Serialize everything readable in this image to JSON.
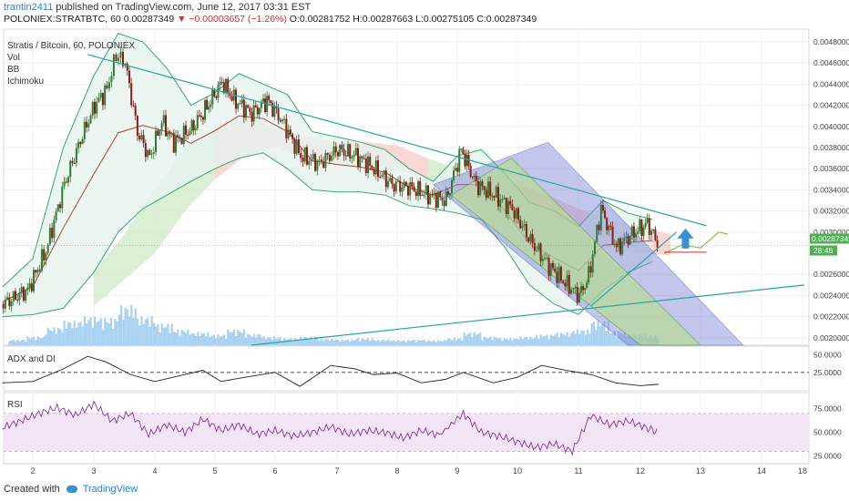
{
  "header": {
    "user": "trantin2411",
    "published": "published on TradingView.com, June 12, 2017 03:31 EST",
    "symbol_line_prefix": "POLONIEX:STRATBTC, 60",
    "last_price": "0.00287349",
    "change": "−0.00003657 (−1.26%)",
    "ohlc": "O:0.00281752 H:0.00287663 L:0.00275105 C:0.00287349"
  },
  "legend": {
    "title": "Stratis / Bitcoin, 60, POLONIEX",
    "items": [
      "Vol",
      "BB",
      "Ichimoku"
    ]
  },
  "adx_label": "ADX and DI",
  "rsi_label": "RSI",
  "footer": {
    "created": "Created with",
    "brand": "TradingView"
  },
  "colors": {
    "up": "#2e7d32",
    "down": "#8b1a1a",
    "volume": "#9ac9ef",
    "bb_fill": "#e6f4ee",
    "bb_line": "#3aa57a",
    "cloud_red": "#f7c9c6",
    "cloud_green": "#cfe9c7",
    "channel_blue": "#7b82d9",
    "channel_green": "#b7df8a",
    "trend": "#26a69a",
    "rsi_line": "#7b1fa2",
    "rsi_band": "#f3e5f5",
    "price_tag": "#4caf50",
    "arrow": "#3b8fd4"
  },
  "chart_data": {
    "type": "candlestick",
    "xlabel": "",
    "ylabel": "",
    "x_ticks": [
      "2",
      "3",
      "4",
      "5",
      "6",
      "7",
      "8",
      "9",
      "10",
      "11",
      "12",
      "13",
      "14",
      "18"
    ],
    "y_ticks": [
      "0.00480000",
      "0.00460000",
      "0.00440000",
      "0.00420000",
      "0.00400000",
      "0.00380000",
      "0.00360000",
      "0.00340000",
      "0.00320000",
      "0.00300000",
      "0.00260000",
      "0.00240000",
      "0.00220000",
      "0.00200000"
    ],
    "ylim": [
      0.00193,
      0.00492
    ],
    "last_price_tag": "0.00287349",
    "countdown_tag": "28:48",
    "price_path": [
      [
        1.5,
        0.00232
      ],
      [
        1.9,
        0.00245
      ],
      [
        2.2,
        0.00282
      ],
      [
        2.5,
        0.00345
      ],
      [
        2.8,
        0.00392
      ],
      [
        3.0,
        0.0042
      ],
      [
        3.2,
        0.00435
      ],
      [
        3.35,
        0.00468
      ],
      [
        3.5,
        0.0046
      ],
      [
        3.7,
        0.00395
      ],
      [
        3.9,
        0.0037
      ],
      [
        4.1,
        0.00405
      ],
      [
        4.3,
        0.00385
      ],
      [
        4.6,
        0.00398
      ],
      [
        4.85,
        0.00418
      ],
      [
        5.1,
        0.00442
      ],
      [
        5.3,
        0.00425
      ],
      [
        5.6,
        0.00412
      ],
      [
        5.85,
        0.00425
      ],
      [
        6.1,
        0.00405
      ],
      [
        6.4,
        0.00372
      ],
      [
        6.7,
        0.00365
      ],
      [
        7.0,
        0.00378
      ],
      [
        7.3,
        0.00372
      ],
      [
        7.6,
        0.0036
      ],
      [
        7.9,
        0.00345
      ],
      [
        8.2,
        0.00342
      ],
      [
        8.5,
        0.00335
      ],
      [
        8.8,
        0.0033
      ],
      [
        9.05,
        0.00378
      ],
      [
        9.3,
        0.00345
      ],
      [
        9.6,
        0.00335
      ],
      [
        9.9,
        0.00322
      ],
      [
        10.2,
        0.00292
      ],
      [
        10.5,
        0.00268
      ],
      [
        10.8,
        0.0025
      ],
      [
        11.0,
        0.0024
      ],
      [
        11.15,
        0.00258
      ],
      [
        11.35,
        0.00322
      ],
      [
        11.6,
        0.00285
      ],
      [
        11.85,
        0.00298
      ],
      [
        12.1,
        0.00308
      ],
      [
        12.3,
        0.00287
      ]
    ],
    "bollinger": {
      "upper": [
        [
          1.5,
          0.00248
        ],
        [
          2.0,
          0.00275
        ],
        [
          2.5,
          0.0038
        ],
        [
          3.0,
          0.00448
        ],
        [
          3.4,
          0.00488
        ],
        [
          3.8,
          0.0048
        ],
        [
          4.2,
          0.00455
        ],
        [
          4.6,
          0.0042
        ],
        [
          5.0,
          0.00432
        ],
        [
          5.4,
          0.0045
        ],
        [
          5.8,
          0.0044
        ],
        [
          6.2,
          0.0043
        ],
        [
          6.6,
          0.00395
        ],
        [
          7.0,
          0.0039
        ],
        [
          7.4,
          0.00385
        ],
        [
          7.8,
          0.00378
        ],
        [
          8.2,
          0.0036
        ],
        [
          8.6,
          0.00348
        ],
        [
          9.0,
          0.00372
        ],
        [
          9.4,
          0.00378
        ],
        [
          9.8,
          0.00355
        ],
        [
          10.2,
          0.00328
        ],
        [
          10.6,
          0.0032
        ],
        [
          11.0,
          0.00305
        ],
        [
          11.4,
          0.0033
        ],
        [
          11.8,
          0.00318
        ],
        [
          12.2,
          0.00312
        ]
      ],
      "lower": [
        [
          1.5,
          0.0022
        ],
        [
          2.0,
          0.00222
        ],
        [
          2.5,
          0.00228
        ],
        [
          3.0,
          0.00262
        ],
        [
          3.4,
          0.003
        ],
        [
          3.8,
          0.00322
        ],
        [
          4.2,
          0.00335
        ],
        [
          4.6,
          0.00348
        ],
        [
          5.0,
          0.0036
        ],
        [
          5.4,
          0.0037
        ],
        [
          5.8,
          0.00375
        ],
        [
          6.2,
          0.0036
        ],
        [
          6.6,
          0.0034
        ],
        [
          7.0,
          0.00338
        ],
        [
          7.4,
          0.00338
        ],
        [
          7.8,
          0.00335
        ],
        [
          8.2,
          0.00325
        ],
        [
          8.6,
          0.00322
        ],
        [
          9.0,
          0.00318
        ],
        [
          9.4,
          0.00312
        ],
        [
          9.8,
          0.00285
        ],
        [
          10.2,
          0.0025
        ],
        [
          10.6,
          0.00232
        ],
        [
          11.0,
          0.00222
        ],
        [
          11.4,
          0.00245
        ],
        [
          11.8,
          0.00262
        ],
        [
          12.2,
          0.00272
        ]
      ]
    },
    "cloud": [
      [
        3.0,
        0.0023,
        0.00262
      ],
      [
        3.5,
        0.00255,
        0.00298
      ],
      [
        4.0,
        0.0028,
        0.0034
      ],
      [
        4.5,
        0.0032,
        0.0038
      ],
      [
        5.0,
        0.0035,
        0.004
      ],
      [
        5.5,
        0.00372,
        0.00412
      ],
      [
        6.0,
        0.0038,
        0.00398
      ],
      [
        6.5,
        0.00368,
        0.0039
      ],
      [
        7.0,
        0.00365,
        0.00385
      ],
      [
        7.5,
        0.00365,
        0.00385
      ],
      [
        8.0,
        0.00358,
        0.00382
      ],
      [
        8.5,
        0.00352,
        0.0037
      ],
      [
        9.0,
        0.00335,
        0.0036
      ],
      [
        9.5,
        0.0033,
        0.00352
      ],
      [
        10.0,
        0.00325,
        0.00345
      ],
      [
        10.5,
        0.003,
        0.00335
      ],
      [
        11.0,
        0.0029,
        0.00322
      ],
      [
        11.5,
        0.00285,
        0.00312
      ],
      [
        12.0,
        0.0028,
        0.00305
      ],
      [
        12.5,
        0.00278,
        0.00298
      ]
    ],
    "volume": [
      [
        1.6,
        0.08
      ],
      [
        1.9,
        0.12
      ],
      [
        2.2,
        0.25
      ],
      [
        2.5,
        0.34
      ],
      [
        2.8,
        0.4
      ],
      [
        3.1,
        0.38
      ],
      [
        3.4,
        0.55
      ],
      [
        3.7,
        0.4
      ],
      [
        4.0,
        0.3
      ],
      [
        4.3,
        0.22
      ],
      [
        4.6,
        0.18
      ],
      [
        4.9,
        0.15
      ],
      [
        5.2,
        0.22
      ],
      [
        5.5,
        0.16
      ],
      [
        5.8,
        0.12
      ],
      [
        6.1,
        0.1
      ],
      [
        6.4,
        0.12
      ],
      [
        6.7,
        0.09
      ],
      [
        7.0,
        0.08
      ],
      [
        7.3,
        0.1
      ],
      [
        7.6,
        0.08
      ],
      [
        7.9,
        0.07
      ],
      [
        8.2,
        0.08
      ],
      [
        8.5,
        0.07
      ],
      [
        8.8,
        0.1
      ],
      [
        9.1,
        0.18
      ],
      [
        9.4,
        0.12
      ],
      [
        9.7,
        0.1
      ],
      [
        10.0,
        0.12
      ],
      [
        10.3,
        0.15
      ],
      [
        10.6,
        0.18
      ],
      [
        10.9,
        0.22
      ],
      [
        11.2,
        0.34
      ],
      [
        11.5,
        0.2
      ],
      [
        11.8,
        0.16
      ],
      [
        12.1,
        0.14
      ],
      [
        12.3,
        0.1
      ]
    ],
    "adx": {
      "ylim": [
        0,
        60
      ],
      "ticks": [
        "50.0000",
        "25.0000"
      ],
      "dashed_level": 25,
      "values": [
        [
          1.5,
          10
        ],
        [
          2.0,
          12
        ],
        [
          2.5,
          30
        ],
        [
          2.9,
          48
        ],
        [
          3.2,
          40
        ],
        [
          3.6,
          22
        ],
        [
          4.0,
          12
        ],
        [
          4.4,
          20
        ],
        [
          4.8,
          28
        ],
        [
          5.1,
          12
        ],
        [
          5.5,
          18
        ],
        [
          6.0,
          25
        ],
        [
          6.4,
          5
        ],
        [
          6.9,
          35
        ],
        [
          7.3,
          30
        ],
        [
          7.6,
          22
        ],
        [
          8.0,
          24
        ],
        [
          8.4,
          10
        ],
        [
          8.8,
          15
        ],
        [
          9.1,
          25
        ],
        [
          9.6,
          10
        ],
        [
          10.0,
          18
        ],
        [
          10.4,
          35
        ],
        [
          10.8,
          28
        ],
        [
          11.2,
          22
        ],
        [
          11.6,
          10
        ],
        [
          12.0,
          6
        ],
        [
          12.3,
          8
        ]
      ]
    },
    "rsi": {
      "ylim": [
        18,
        90
      ],
      "ticks": [
        "75.0000",
        "50.0000",
        "25.0000"
      ],
      "band": [
        30,
        70
      ],
      "values": [
        [
          1.5,
          55
        ],
        [
          1.8,
          62
        ],
        [
          2.1,
          70
        ],
        [
          2.4,
          76
        ],
        [
          2.7,
          68
        ],
        [
          3.0,
          80
        ],
        [
          3.3,
          62
        ],
        [
          3.6,
          70
        ],
        [
          3.9,
          48
        ],
        [
          4.2,
          58
        ],
        [
          4.5,
          50
        ],
        [
          4.8,
          64
        ],
        [
          5.1,
          52
        ],
        [
          5.4,
          58
        ],
        [
          5.7,
          48
        ],
        [
          6.0,
          52
        ],
        [
          6.3,
          46
        ],
        [
          6.6,
          50
        ],
        [
          6.9,
          56
        ],
        [
          7.2,
          48
        ],
        [
          7.5,
          52
        ],
        [
          7.8,
          50
        ],
        [
          8.1,
          44
        ],
        [
          8.4,
          52
        ],
        [
          8.7,
          47
        ],
        [
          9.1,
          70
        ],
        [
          9.4,
          50
        ],
        [
          9.7,
          46
        ],
        [
          10.0,
          40
        ],
        [
          10.3,
          34
        ],
        [
          10.6,
          38
        ],
        [
          10.9,
          30
        ],
        [
          11.2,
          68
        ],
        [
          11.5,
          58
        ],
        [
          11.8,
          62
        ],
        [
          12.1,
          55
        ],
        [
          12.3,
          50
        ]
      ]
    }
  }
}
